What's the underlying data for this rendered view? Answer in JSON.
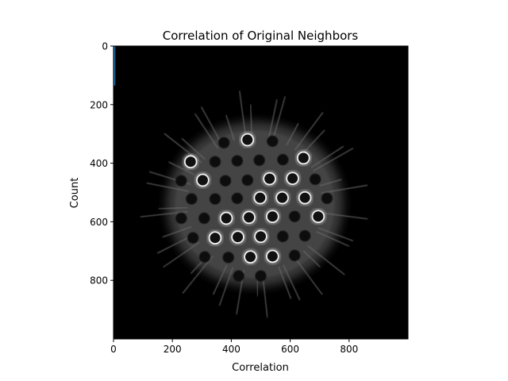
{
  "chart_data": {
    "type": "heatmap",
    "title": "Correlation of Original Neighbors",
    "xlabel": "Correlation",
    "ylabel": "Count",
    "xlim": [
      0,
      1000
    ],
    "ylim": [
      1000,
      0
    ],
    "x_ticks": [
      0,
      200,
      400,
      600,
      800
    ],
    "y_ticks": [
      0,
      200,
      400,
      600,
      800
    ],
    "x_tick_labels": [
      "0",
      "200",
      "400",
      "600",
      "800"
    ],
    "y_tick_labels": [
      "0",
      "200",
      "400",
      "600",
      "800"
    ],
    "colormap": "gray",
    "background_color": "#000000",
    "image_description": "grayscale microscopy image of a radial lattice with circular pores",
    "bright_rings": [
      {
        "x": 455,
        "y": 320
      },
      {
        "x": 262,
        "y": 395
      },
      {
        "x": 645,
        "y": 382
      },
      {
        "x": 303,
        "y": 458
      },
      {
        "x": 530,
        "y": 453
      },
      {
        "x": 608,
        "y": 452
      },
      {
        "x": 498,
        "y": 518
      },
      {
        "x": 573,
        "y": 518
      },
      {
        "x": 650,
        "y": 518
      },
      {
        "x": 383,
        "y": 588
      },
      {
        "x": 460,
        "y": 585
      },
      {
        "x": 540,
        "y": 582
      },
      {
        "x": 345,
        "y": 655
      },
      {
        "x": 422,
        "y": 652
      },
      {
        "x": 500,
        "y": 650
      },
      {
        "x": 465,
        "y": 720
      },
      {
        "x": 540,
        "y": 718
      },
      {
        "x": 695,
        "y": 582
      }
    ],
    "dark_pores": [
      {
        "x": 375,
        "y": 330
      },
      {
        "x": 540,
        "y": 325
      },
      {
        "x": 345,
        "y": 395
      },
      {
        "x": 420,
        "y": 392
      },
      {
        "x": 495,
        "y": 390
      },
      {
        "x": 575,
        "y": 388
      },
      {
        "x": 230,
        "y": 460
      },
      {
        "x": 380,
        "y": 460
      },
      {
        "x": 455,
        "y": 458
      },
      {
        "x": 685,
        "y": 455
      },
      {
        "x": 265,
        "y": 522
      },
      {
        "x": 345,
        "y": 522
      },
      {
        "x": 420,
        "y": 520
      },
      {
        "x": 725,
        "y": 520
      },
      {
        "x": 230,
        "y": 588
      },
      {
        "x": 308,
        "y": 588
      },
      {
        "x": 615,
        "y": 582
      },
      {
        "x": 270,
        "y": 655
      },
      {
        "x": 575,
        "y": 650
      },
      {
        "x": 650,
        "y": 648
      },
      {
        "x": 310,
        "y": 720
      },
      {
        "x": 390,
        "y": 722
      },
      {
        "x": 615,
        "y": 715
      },
      {
        "x": 425,
        "y": 785
      },
      {
        "x": 500,
        "y": 785
      }
    ],
    "series": [
      {
        "values": [
          0,
          135
        ],
        "color": "#1f77b4"
      }
    ]
  }
}
